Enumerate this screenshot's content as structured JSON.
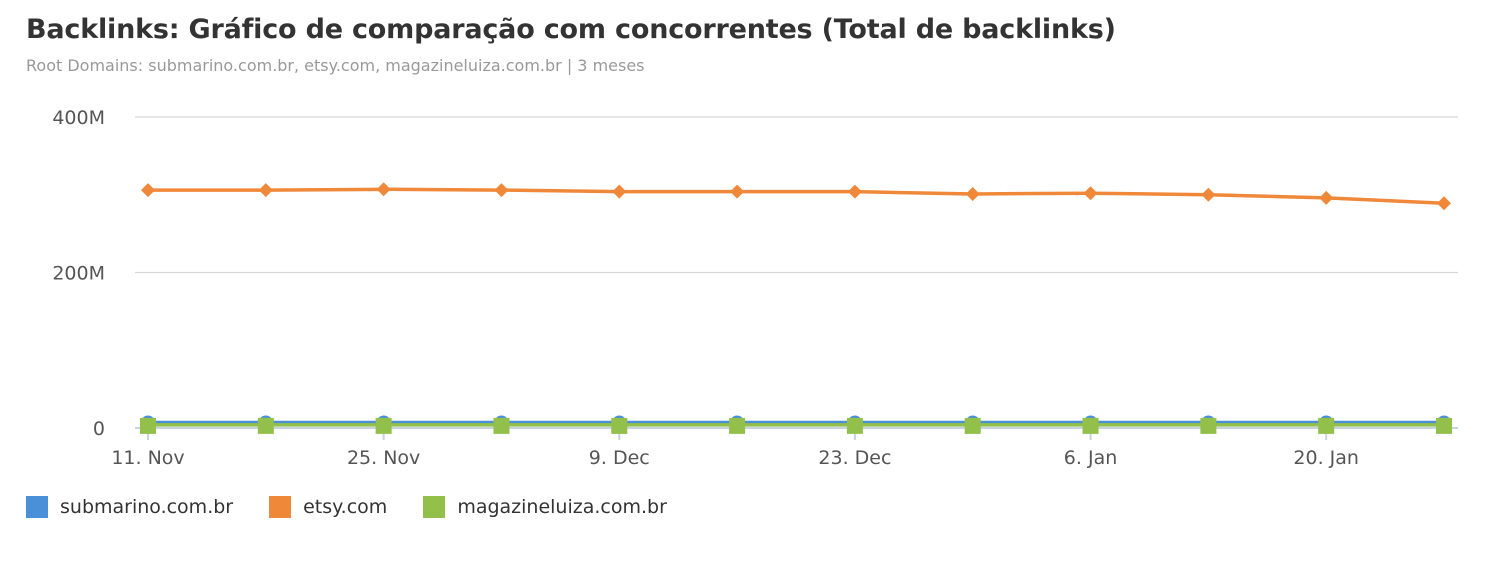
{
  "title": "Backlinks: Gráfico de comparação com concorrentes (Total de backlinks)",
  "subtitle": "Root Domains: submarino.com.br, etsy.com, magazineluiza.com.br | 3 meses",
  "chart_data": {
    "type": "line",
    "x": [
      "11. Nov",
      "18. Nov",
      "25. Nov",
      "2. Dec",
      "9. Dec",
      "16. Dec",
      "23. Dec",
      "30. Dec",
      "6. Jan",
      "13. Jan",
      "20. Jan",
      "27. Jan"
    ],
    "x_tick_labels": [
      "11. Nov",
      "25. Nov",
      "9. Dec",
      "23. Dec",
      "6. Jan",
      "20. Jan"
    ],
    "y_tick_labels": [
      "0",
      "200M",
      "400M"
    ],
    "ylim": [
      0,
      400000000
    ],
    "grid": true,
    "legend_placement": "bottom-left",
    "series": [
      {
        "name": "submarino.com.br",
        "color": "#4a90d9",
        "marker": "circle",
        "values": [
          7000000,
          7000000,
          7000000,
          7000000,
          7000000,
          7000000,
          7000000,
          7000000,
          7000000,
          7000000,
          7000000,
          7000000
        ]
      },
      {
        "name": "etsy.com",
        "color": "#f0883a",
        "marker": "diamond",
        "values": [
          306000000,
          306000000,
          307000000,
          306000000,
          304000000,
          304000000,
          304000000,
          301000000,
          302000000,
          300000000,
          296000000,
          289000000
        ]
      },
      {
        "name": "magazineluiza.com.br",
        "color": "#93c04b",
        "marker": "square",
        "values": [
          4000000,
          4000000,
          4000000,
          4000000,
          4000000,
          4000000,
          4000000,
          4000000,
          4000000,
          4000000,
          4000000,
          4000000
        ]
      }
    ]
  }
}
